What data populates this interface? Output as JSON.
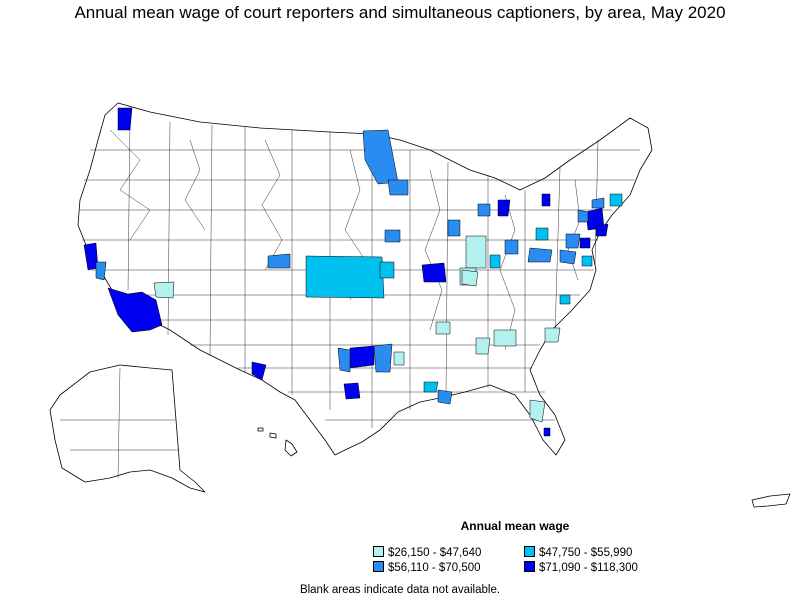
{
  "title": "Annual mean wage of court reporters and simultaneous captioners, by area, May 2020",
  "legend": {
    "title": "Annual mean wage",
    "items": [
      {
        "label": "$26,150 - $47,640",
        "color": "#b3f0f0"
      },
      {
        "label": "$47,750 - $55,990",
        "color": "#00c0f0"
      },
      {
        "label": "$56,110 - $70,500",
        "color": "#2a8cf0"
      },
      {
        "label": "$71,090 - $118,300",
        "color": "#0000f0"
      }
    ]
  },
  "note": "Blank areas indicate data not available."
}
